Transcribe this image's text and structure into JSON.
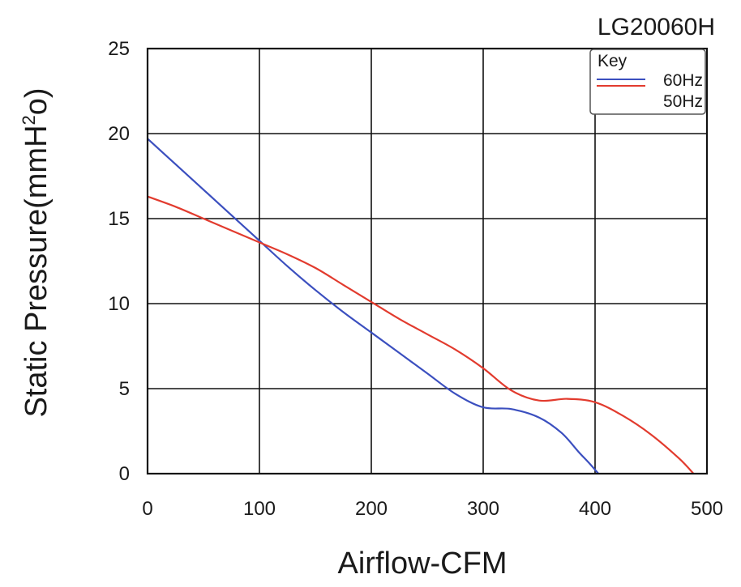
{
  "chart_data": {
    "type": "line",
    "title": "LG20060H",
    "xlabel": "Airflow-CFM",
    "ylabel_main": "Static Pressure(mmH",
    "ylabel_sup": "2",
    "ylabel_end": "o)",
    "xlim": [
      0,
      500
    ],
    "ylim": [
      0,
      25
    ],
    "xticks": [
      0,
      100,
      200,
      300,
      400,
      500
    ],
    "yticks": [
      0,
      5,
      10,
      15,
      20,
      25
    ],
    "grid": true,
    "legend": {
      "title": "Key",
      "placement": "top-right",
      "entries": [
        "60Hz",
        "50Hz"
      ]
    },
    "series": [
      {
        "name": "60Hz",
        "color": "#3b4fbf",
        "x": [
          0,
          25,
          50,
          75,
          100,
          125,
          150,
          175,
          200,
          225,
          250,
          275,
          300,
          325,
          350,
          370,
          385,
          395,
          403
        ],
        "y": [
          19.7,
          18.2,
          16.7,
          15.2,
          13.7,
          12.2,
          10.8,
          9.5,
          8.3,
          7.1,
          5.9,
          4.7,
          3.9,
          3.8,
          3.3,
          2.4,
          1.3,
          0.6,
          0
        ]
      },
      {
        "name": "50Hz",
        "color": "#e23b2e",
        "x": [
          0,
          25,
          50,
          75,
          100,
          125,
          150,
          175,
          200,
          225,
          250,
          275,
          300,
          325,
          350,
          375,
          400,
          425,
          450,
          475,
          488
        ],
        "y": [
          16.3,
          15.7,
          15.0,
          14.3,
          13.6,
          12.9,
          12.1,
          11.1,
          10.1,
          9.1,
          8.2,
          7.3,
          6.2,
          4.9,
          4.3,
          4.4,
          4.2,
          3.4,
          2.3,
          0.9,
          0
        ]
      }
    ]
  }
}
